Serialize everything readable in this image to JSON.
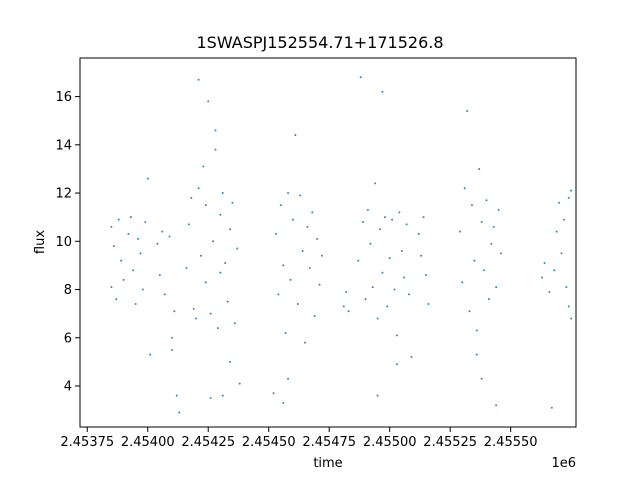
{
  "chart_data": {
    "type": "scatter",
    "title": "1SWASPJ152554.71+171526.8",
    "xlabel": "time",
    "ylabel": "flux",
    "x_offset_label": "1e6",
    "xlim": [
      2.45372,
      2.45577
    ],
    "ylim": [
      2.3,
      17.6
    ],
    "x_ticks": [
      2.45375,
      2.454,
      2.45425,
      2.4545,
      2.45475,
      2.455,
      2.45525,
      2.4555
    ],
    "x_tick_labels": [
      "2.45375",
      "2.45400",
      "2.45425",
      "2.45450",
      "2.45475",
      "2.45500",
      "2.45525",
      "2.45550"
    ],
    "y_ticks": [
      4,
      6,
      8,
      10,
      12,
      14,
      16
    ],
    "y_tick_labels": [
      "4",
      "6",
      "8",
      "10",
      "12",
      "14",
      "16"
    ],
    "grid": false,
    "legend": "none",
    "marker_color": "#1f77b4",
    "series": [
      {
        "points": [
          [
            2.45385,
            8.1
          ],
          [
            2.45385,
            10.6
          ],
          [
            2.45386,
            9.8
          ],
          [
            2.45387,
            7.6
          ],
          [
            2.45388,
            10.9
          ],
          [
            2.45389,
            9.2
          ],
          [
            2.4539,
            8.4
          ],
          [
            2.45392,
            10.3
          ],
          [
            2.45393,
            11.0
          ],
          [
            2.45394,
            8.8
          ],
          [
            2.45395,
            7.4
          ],
          [
            2.45396,
            10.1
          ],
          [
            2.45397,
            9.5
          ],
          [
            2.45398,
            8.0
          ],
          [
            2.45399,
            10.8
          ],
          [
            2.454,
            12.6
          ],
          [
            2.45401,
            5.3
          ],
          [
            2.45404,
            9.9
          ],
          [
            2.45405,
            8.6
          ],
          [
            2.45406,
            10.4
          ],
          [
            2.45407,
            7.8
          ],
          [
            2.45409,
            10.2
          ],
          [
            2.4541,
            6.0
          ],
          [
            2.4541,
            5.5
          ],
          [
            2.45411,
            7.1
          ],
          [
            2.45412,
            3.6
          ],
          [
            2.45413,
            2.9
          ],
          [
            2.45416,
            8.9
          ],
          [
            2.45417,
            10.7
          ],
          [
            2.45418,
            11.8
          ],
          [
            2.45419,
            7.2
          ],
          [
            2.4542,
            6.8
          ],
          [
            2.45421,
            12.2
          ],
          [
            2.45421,
            16.7
          ],
          [
            2.45422,
            9.4
          ],
          [
            2.45423,
            13.1
          ],
          [
            2.45424,
            8.3
          ],
          [
            2.45424,
            11.5
          ],
          [
            2.45425,
            15.8
          ],
          [
            2.45426,
            7.0
          ],
          [
            2.45427,
            10.0
          ],
          [
            2.45428,
            14.6
          ],
          [
            2.45429,
            6.4
          ],
          [
            2.4543,
            11.1
          ],
          [
            2.4543,
            8.7
          ],
          [
            2.45431,
            12.0
          ],
          [
            2.45432,
            9.1
          ],
          [
            2.45433,
            7.5
          ],
          [
            2.45434,
            10.5
          ],
          [
            2.45434,
            5.0
          ],
          [
            2.45435,
            11.6
          ],
          [
            2.45436,
            6.6
          ],
          [
            2.45437,
            9.7
          ],
          [
            2.45438,
            4.1
          ],
          [
            2.45428,
            13.8
          ],
          [
            2.45426,
            3.5
          ],
          [
            2.45431,
            3.6
          ],
          [
            2.45453,
            10.3
          ],
          [
            2.45454,
            7.8
          ],
          [
            2.45455,
            11.5
          ],
          [
            2.45456,
            9.0
          ],
          [
            2.45457,
            6.2
          ],
          [
            2.45458,
            4.3
          ],
          [
            2.45458,
            12.0
          ],
          [
            2.45459,
            8.4
          ],
          [
            2.4546,
            10.9
          ],
          [
            2.45461,
            14.4
          ],
          [
            2.45462,
            7.4
          ],
          [
            2.45463,
            11.9
          ],
          [
            2.45464,
            9.6
          ],
          [
            2.45465,
            5.8
          ],
          [
            2.45466,
            10.6
          ],
          [
            2.45467,
            8.9
          ],
          [
            2.45468,
            11.2
          ],
          [
            2.45469,
            6.9
          ],
          [
            2.4547,
            10.1
          ],
          [
            2.45471,
            8.2
          ],
          [
            2.45472,
            9.4
          ],
          [
            2.45456,
            3.3
          ],
          [
            2.45452,
            3.7
          ],
          [
            2.45481,
            7.3
          ],
          [
            2.45482,
            7.9
          ],
          [
            2.45483,
            7.1
          ],
          [
            2.45487,
            9.2
          ],
          [
            2.45488,
            16.8
          ],
          [
            2.45489,
            10.8
          ],
          [
            2.4549,
            7.6
          ],
          [
            2.45491,
            11.3
          ],
          [
            2.45492,
            9.9
          ],
          [
            2.45493,
            8.1
          ],
          [
            2.45494,
            12.4
          ],
          [
            2.45495,
            6.8
          ],
          [
            2.45496,
            10.5
          ],
          [
            2.45497,
            8.7
          ],
          [
            2.45497,
            16.2
          ],
          [
            2.45498,
            11.0
          ],
          [
            2.45499,
            7.3
          ],
          [
            2.455,
            9.3
          ],
          [
            2.45501,
            10.9
          ],
          [
            2.45502,
            8.0
          ],
          [
            2.45503,
            6.1
          ],
          [
            2.45504,
            11.2
          ],
          [
            2.45505,
            9.6
          ],
          [
            2.45506,
            8.5
          ],
          [
            2.45507,
            10.7
          ],
          [
            2.45508,
            7.8
          ],
          [
            2.45509,
            5.2
          ],
          [
            2.45503,
            4.9
          ],
          [
            2.45495,
            3.6
          ],
          [
            2.45512,
            10.3
          ],
          [
            2.45513,
            9.4
          ],
          [
            2.45514,
            11.0
          ],
          [
            2.45515,
            8.6
          ],
          [
            2.45516,
            7.4
          ],
          [
            2.45529,
            10.4
          ],
          [
            2.4553,
            8.3
          ],
          [
            2.45531,
            12.2
          ],
          [
            2.45532,
            15.4
          ],
          [
            2.45533,
            7.1
          ],
          [
            2.45534,
            11.5
          ],
          [
            2.45535,
            9.2
          ],
          [
            2.45536,
            6.3
          ],
          [
            2.45537,
            13.0
          ],
          [
            2.45538,
            10.8
          ],
          [
            2.45539,
            8.8
          ],
          [
            2.4554,
            11.7
          ],
          [
            2.45541,
            7.6
          ],
          [
            2.45542,
            9.9
          ],
          [
            2.45543,
            10.6
          ],
          [
            2.45544,
            8.1
          ],
          [
            2.45545,
            11.3
          ],
          [
            2.45546,
            9.5
          ],
          [
            2.45538,
            4.3
          ],
          [
            2.45536,
            5.3
          ],
          [
            2.45544,
            3.2
          ],
          [
            2.45563,
            8.5
          ],
          [
            2.45564,
            9.1
          ],
          [
            2.45566,
            7.9
          ],
          [
            2.45567,
            3.1
          ],
          [
            2.45568,
            8.8
          ],
          [
            2.45569,
            10.4
          ],
          [
            2.4557,
            11.6
          ],
          [
            2.45571,
            9.5
          ],
          [
            2.45572,
            10.9
          ],
          [
            2.45573,
            8.1
          ],
          [
            2.45574,
            11.8
          ],
          [
            2.45574,
            7.3
          ],
          [
            2.45575,
            12.1
          ],
          [
            2.45575,
            6.8
          ]
        ]
      }
    ]
  }
}
